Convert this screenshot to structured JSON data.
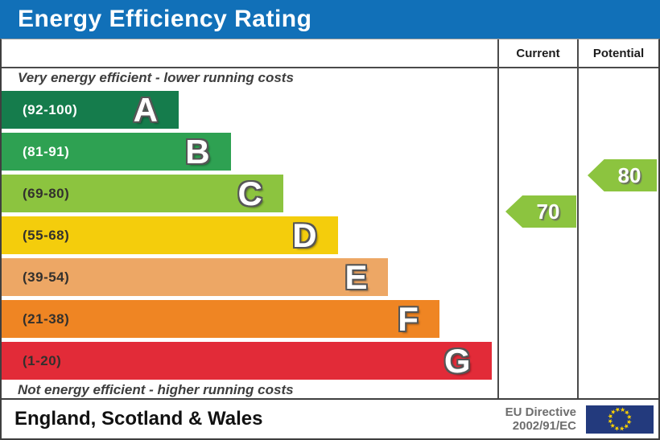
{
  "title": "Energy Efficiency Rating",
  "header": {
    "current": "Current",
    "potential": "Potential"
  },
  "captions": {
    "top": "Very energy efficient - lower running costs",
    "bottom": "Not energy efficient - higher running costs"
  },
  "footer": {
    "region": "England, Scotland & Wales",
    "directive": [
      "EU Directive",
      "2002/91/EC"
    ],
    "flag": "eu-flag"
  },
  "colors": {
    "title_bg": "#1170b8",
    "title_text": "#ffffff",
    "border": "#3f3f3f",
    "arrow_green": "#8cc43f",
    "directive_text": "#6e6e6e",
    "flag_bg": "#233a7d",
    "flag_stars": "#ffd500"
  },
  "chart_data": {
    "type": "bar",
    "title": "Energy Efficiency Rating",
    "xlabel": "",
    "ylabel": "",
    "legend": [
      "Current",
      "Potential"
    ],
    "bands": [
      {
        "letter": "A",
        "range_label": "(92-100)",
        "range": [
          92,
          100
        ],
        "color": "#157c4c",
        "label_color": "#ffffff",
        "width_pct": 35.7
      },
      {
        "letter": "B",
        "range_label": "(81-91)",
        "range": [
          81,
          91
        ],
        "color": "#2ea152",
        "label_color": "#ffffff",
        "width_pct": 46.2
      },
      {
        "letter": "C",
        "range_label": "(69-80)",
        "range": [
          69,
          80
        ],
        "color": "#8cc43f",
        "label_color": "#32302d",
        "width_pct": 56.8
      },
      {
        "letter": "D",
        "range_label": "(55-68)",
        "range": [
          55,
          68
        ],
        "color": "#f4cd0c",
        "label_color": "#32302d",
        "width_pct": 67.8
      },
      {
        "letter": "E",
        "range_label": "(39-54)",
        "range": [
          39,
          54
        ],
        "color": "#eda765",
        "label_color": "#32302d",
        "width_pct": 78.0
      },
      {
        "letter": "F",
        "range_label": "(21-38)",
        "range": [
          21,
          38
        ],
        "color": "#ef8523",
        "label_color": "#32302d",
        "width_pct": 88.3
      },
      {
        "letter": "G",
        "range_label": "(1-20)",
        "range": [
          1,
          20
        ],
        "color": "#e22b38",
        "label_color": "#32302d",
        "width_pct": 98.8
      }
    ],
    "current": {
      "value": 70,
      "band": "C",
      "arrow_color": "#8cc43f"
    },
    "potential": {
      "value": 80,
      "band": "C",
      "arrow_color": "#8cc43f"
    }
  }
}
